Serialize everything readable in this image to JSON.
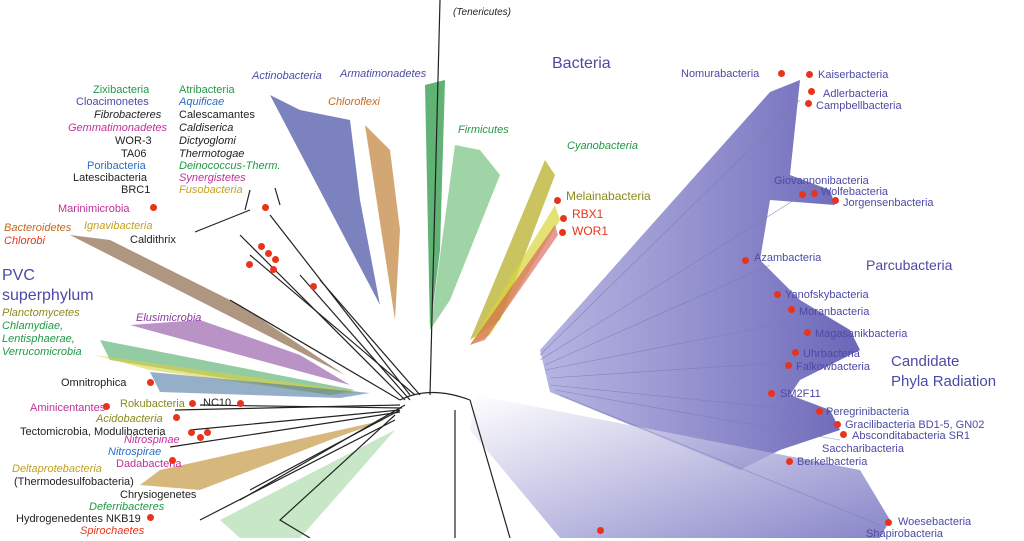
{
  "colors": {
    "purple": "#4b4aa6",
    "violet": "#7d7cc4",
    "green": "#1f9a44",
    "olive": "#8a8a1a",
    "orange": "#c4681c",
    "red": "#e8341c",
    "magenta": "#c0309a",
    "blue": "#2b6cc4",
    "black": "#222222",
    "brown": "#8b6a4a"
  },
  "regions": {
    "bacteria": "Bacteria",
    "pvc_line1": "PVC",
    "pvc_line2": "superphylum",
    "parcubacteria": "Parcubacteria",
    "cpr_line1": "Candidate",
    "cpr_line2": "Phyla Radiation"
  },
  "top": {
    "tenericutes": "(Tenericutes)",
    "armatimonadetes": "Armatimonadetes",
    "actinobacteria": "Actinobacteria",
    "chloroflexi": "Chloroflexi",
    "firmicutes": "Firmicutes",
    "cyanobacteria": "Cyanobacteria",
    "melainabacteria": "Melainabacteria",
    "rbx1": "RBX1",
    "wor1": "WOR1"
  },
  "left_col1": [
    "Zixibacteria",
    "Cloacimonetes",
    "Fibrobacteres",
    "Gemmatimonadetes",
    "WOR-3",
    "TA06",
    "Poribacteria",
    "Latescibacteria",
    "BRC1"
  ],
  "left_col2": [
    "Atribacteria",
    "Aquificae",
    "Calescamantes",
    "Caldiserica",
    "Dictyoglomi",
    "Thermotogae",
    "Deinococcus-Therm.",
    "Synergistetes",
    "Fusobacteria"
  ],
  "left_mid": {
    "marinimicrobia": "Marinimicrobia",
    "bacteroidetes": "Bacteroidetes",
    "chlorobi": "Chlorobi",
    "ignavibacteria": "Ignavibacteria",
    "caldithrix": "Caldithrix"
  },
  "pvc_members": [
    "Planctomycetes",
    "Chlamydiae,",
    "Lentisphaerae,",
    "Verrucomicrobia"
  ],
  "left_low": {
    "elusimicrobia": "Elusimicrobia",
    "omnitrophica": "Omnitrophica",
    "aminicentantes": "Aminicentantes",
    "rokubacteria": "Rokubacteria",
    "nc10": "NC10",
    "acidobacteria": "Acidobacteria",
    "tectomicrobia": "Tectomicrobia, Modulibacteria",
    "nitrospinae": "Nitrospinae",
    "nitrospirae": "Nitrospirae",
    "dadabacteria": "Dadabacteria",
    "deltaproteobacteria": "Deltaprotebacteria",
    "thermodesulfobacteria": "(Thermodesulfobacteria)",
    "chrysiogenetes": "Chrysiogenetes",
    "deferribacteres": "Deferribacteres",
    "hydrogenedentes": "Hydrogenedentes NKB19",
    "spirochaetes": "Spirochaetes"
  },
  "cpr": [
    "Nomurabacteria",
    "Kaiserbacteria",
    "Adlerbacteria",
    "Campbellbacteria",
    "Giovannonibacteria",
    "Wolfebacteria",
    "Jorgensenbacteria",
    "Azambacteria",
    "Yanofskybacteria",
    "Moranbacteria",
    "Magasanikbacteria",
    "Uhrbacteria",
    "Falkowbacteria",
    "SM2F11",
    "Peregrinibacteria",
    "Gracilibacteria BD1-5, GN02",
    "Absconditabacteria SR1",
    "Saccharibacteria",
    "Berkelbacteria",
    "Woesebacteria",
    "Shapirobacteria"
  ]
}
